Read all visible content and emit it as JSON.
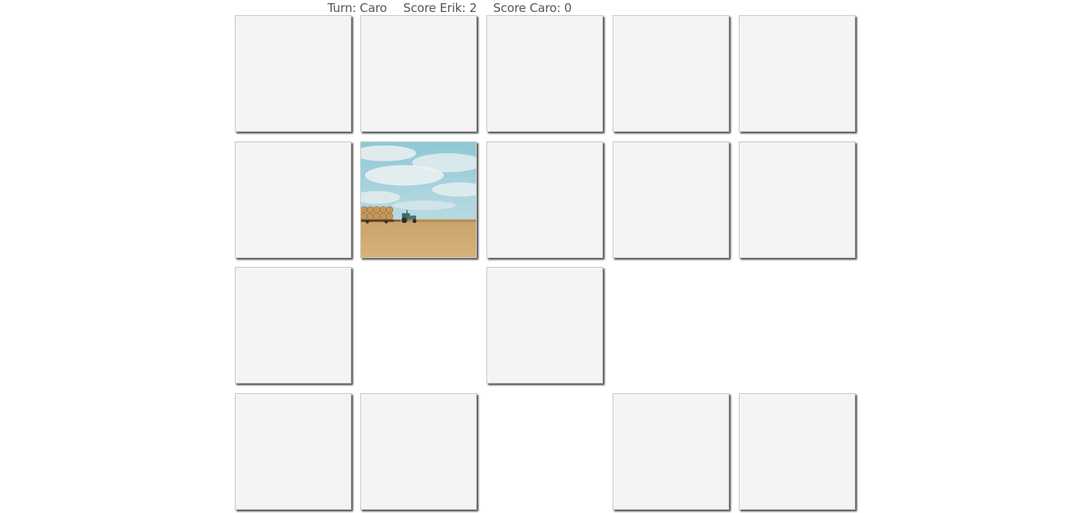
{
  "status": {
    "turn_text": "Turn: Caro",
    "score_erik_text": "Score Erik: 2",
    "score_caro_text": "Score Caro: 0"
  },
  "board": {
    "rows": 4,
    "columns": 5,
    "cells": [
      [
        "hidden",
        "hidden",
        "hidden",
        "hidden",
        "hidden"
      ],
      [
        "hidden",
        "revealed",
        "hidden",
        "hidden",
        "hidden"
      ],
      [
        "hidden",
        "matched",
        "hidden",
        "matched",
        "matched"
      ],
      [
        "hidden",
        "hidden",
        "matched",
        "hidden",
        "hidden"
      ]
    ],
    "revealed_card_picture": "field-with-tractor-and-hay-bales"
  }
}
